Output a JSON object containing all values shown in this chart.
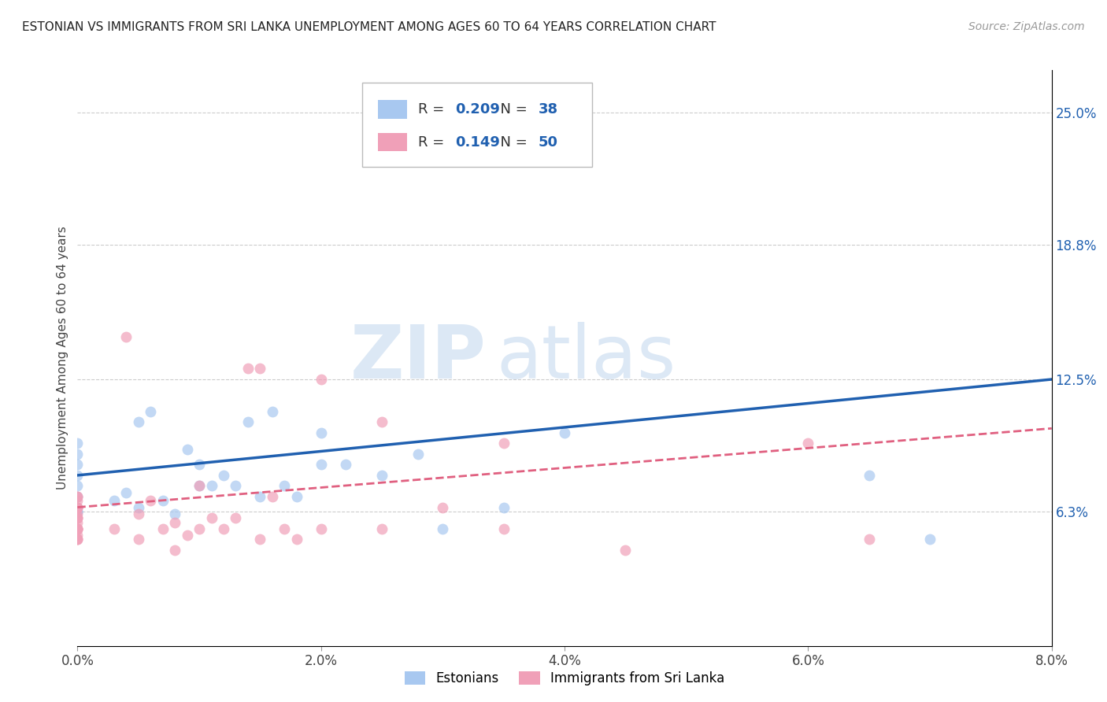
{
  "title": "ESTONIAN VS IMMIGRANTS FROM SRI LANKA UNEMPLOYMENT AMONG AGES 60 TO 64 YEARS CORRELATION CHART",
  "source": "Source: ZipAtlas.com",
  "ylabel": "Unemployment Among Ages 60 to 64 years",
  "xlabel_vals": [
    0.0,
    2.0,
    4.0,
    6.0,
    8.0
  ],
  "ylabel_right_vals": [
    6.3,
    12.5,
    18.8,
    25.0
  ],
  "xmin": 0.0,
  "xmax": 8.0,
  "ymin": 0.0,
  "ymax": 27.0,
  "R_estonian": 0.209,
  "N_estonian": 38,
  "R_srilanka": 0.149,
  "N_srilanka": 50,
  "color_estonian": "#a8c8f0",
  "color_srilanka": "#f0a0b8",
  "color_line_estonian": "#2060b0",
  "color_line_srilanka": "#e06080",
  "watermark_zip": "ZIP",
  "watermark_atlas": "atlas",
  "watermark_color": "#dce8f5",
  "trend_e_x0": 0.0,
  "trend_e_y0": 8.0,
  "trend_e_x1": 8.0,
  "trend_e_y1": 12.5,
  "trend_s_x0": 0.0,
  "trend_s_y0": 6.5,
  "trend_s_x1": 8.0,
  "trend_s_y1": 10.2,
  "estonian_x": [
    0.0,
    0.0,
    0.0,
    0.0,
    0.0,
    0.0,
    0.0,
    0.0,
    0.0,
    0.0,
    0.3,
    0.4,
    0.5,
    0.6,
    0.7,
    0.8,
    0.9,
    1.0,
    1.1,
    1.2,
    1.3,
    1.4,
    1.5,
    1.6,
    1.7,
    1.8,
    2.0,
    2.2,
    2.5,
    2.8,
    3.0,
    3.5,
    4.0,
    6.5,
    7.0,
    2.0,
    1.0,
    0.5
  ],
  "estonian_y": [
    6.3,
    6.3,
    6.3,
    6.5,
    7.0,
    7.5,
    8.0,
    8.5,
    9.0,
    9.5,
    6.8,
    7.2,
    10.5,
    11.0,
    6.8,
    6.2,
    9.2,
    8.5,
    7.5,
    8.0,
    7.5,
    10.5,
    7.0,
    11.0,
    7.5,
    7.0,
    10.0,
    8.5,
    8.0,
    9.0,
    5.5,
    6.5,
    10.0,
    8.0,
    5.0,
    8.5,
    7.5,
    6.5
  ],
  "srilanka_x": [
    0.0,
    0.0,
    0.0,
    0.0,
    0.0,
    0.0,
    0.0,
    0.0,
    0.0,
    0.0,
    0.0,
    0.0,
    0.0,
    0.0,
    0.0,
    0.0,
    0.0,
    0.0,
    0.0,
    0.0,
    0.3,
    0.4,
    0.5,
    0.6,
    0.7,
    0.8,
    0.9,
    1.0,
    1.1,
    1.2,
    1.3,
    1.4,
    1.5,
    1.6,
    1.7,
    1.8,
    2.0,
    2.5,
    3.0,
    3.5,
    0.5,
    1.0,
    1.5,
    2.0,
    3.5,
    6.0,
    6.5,
    4.5,
    2.5,
    0.8
  ],
  "srilanka_y": [
    5.0,
    5.0,
    5.2,
    5.5,
    5.8,
    6.0,
    6.2,
    6.5,
    6.8,
    7.0,
    5.5,
    6.0,
    6.5,
    7.0,
    5.0,
    5.5,
    6.0,
    5.5,
    6.5,
    5.5,
    5.5,
    14.5,
    6.2,
    6.8,
    5.5,
    5.8,
    5.2,
    7.5,
    6.0,
    5.5,
    6.0,
    13.0,
    13.0,
    7.0,
    5.5,
    5.0,
    5.5,
    5.5,
    6.5,
    5.5,
    5.0,
    5.5,
    5.0,
    12.5,
    9.5,
    9.5,
    5.0,
    4.5,
    10.5,
    4.5
  ]
}
